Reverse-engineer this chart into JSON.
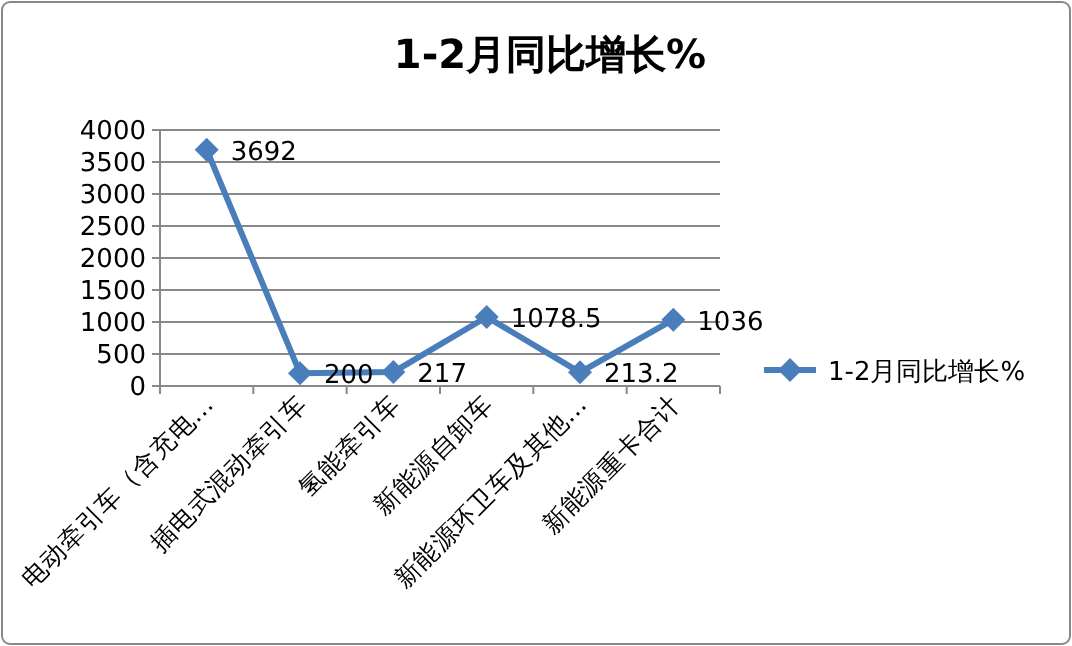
{
  "chart_data": {
    "type": "line",
    "title": "1-2月同比增长%",
    "categories": [
      "电动牵引车（含充电…",
      "插电式混动牵引车",
      "氢能牵引车",
      "新能源自卸车",
      "新能源环卫车及其他…",
      "新能源重卡合计"
    ],
    "series": [
      {
        "name": "1-2月同比增长%",
        "color": "#4a7ebb",
        "values": [
          3692,
          200,
          217,
          1078.5,
          213.2,
          1036
        ]
      }
    ],
    "ylim": [
      0,
      4000
    ],
    "yticks": [
      0,
      500,
      1000,
      1500,
      2000,
      2500,
      3000,
      3500,
      4000
    ],
    "grid": "y",
    "legend": "right",
    "marker": "diamond",
    "line_style": "solid",
    "data_labels": true
  }
}
